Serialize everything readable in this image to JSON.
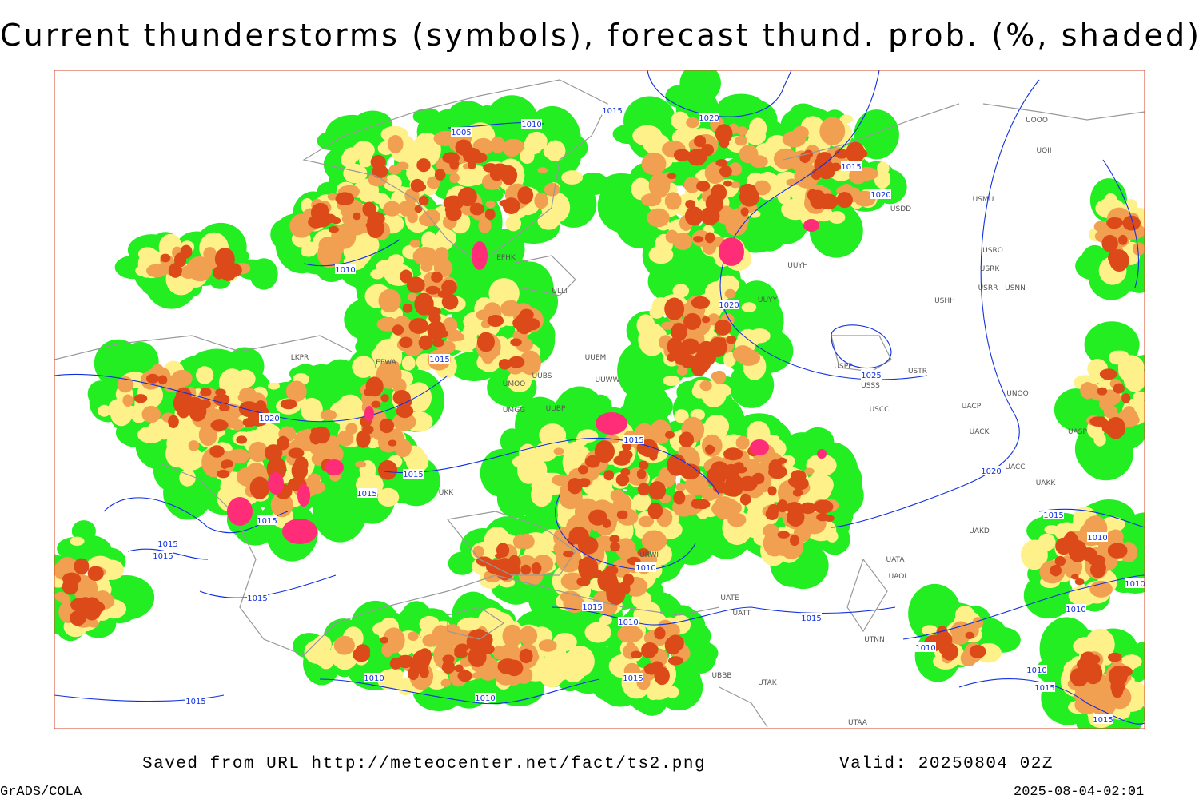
{
  "header": {
    "title": "Current thunderstorms (symbols), forecast thund. prob. (%, shaded)"
  },
  "footer": {
    "source": "Saved from URL http://meteocenter.net/fact/ts2.png",
    "valid": "Valid: 20250804 02Z",
    "software": "GrADS/COLA",
    "timestamp": "2025-08-04-02:01"
  },
  "map": {
    "isobar_labels": [
      "1005",
      "1010",
      "1015",
      "1020",
      "1015",
      "1020",
      "1010",
      "1015",
      "1020",
      "1025",
      "1020",
      "1015",
      "1015",
      "1015",
      "1015",
      "1015",
      "1015",
      "1020",
      "1015",
      "1010",
      "1010",
      "1015",
      "1015",
      "1010",
      "1015",
      "1010",
      "1010",
      "1010",
      "1015",
      "1015",
      "1010",
      "1010",
      "1015",
      "1015",
      "1010"
    ],
    "stations": [
      "EFHK",
      "ULLI",
      "UUEM",
      "UUWW",
      "UMOO",
      "UUBS",
      "UMGG",
      "UUBP",
      "EPWA",
      "LKPR",
      "UUYH",
      "UUYY",
      "USHH",
      "USPP",
      "USTR",
      "USSS",
      "USCC",
      "UACP",
      "UNOO",
      "UACK",
      "UASP",
      "UACC",
      "UAKK",
      "UAKD",
      "UATA",
      "UAOL",
      "UATE",
      "UATT",
      "UTNN",
      "UBBB",
      "UTAK",
      "UTAA",
      "URWI",
      "USMU",
      "USDD",
      "UOOO",
      "UOII",
      "USRO",
      "USRK",
      "USNN",
      "USRR",
      "UKK"
    ]
  }
}
